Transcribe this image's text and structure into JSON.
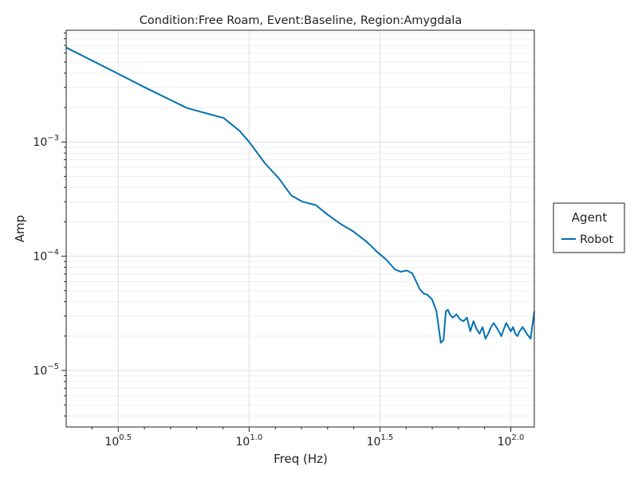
{
  "chart_data": {
    "type": "line",
    "title": "Condition:Free Roam, Event:Baseline, Region:Amygdala",
    "xlabel": "Freq (Hz)",
    "ylabel": "Amp",
    "xscale": "log10",
    "yscale": "log10",
    "xlim": [
      2,
      123
    ],
    "ylim": [
      3.2e-06,
      0.0095
    ],
    "grid": true,
    "x_ticks": [
      {
        "value": 3.1623,
        "base": "10",
        "exp": "0.5"
      },
      {
        "value": 10,
        "base": "10",
        "exp": "1.0"
      },
      {
        "value": 31.623,
        "base": "10",
        "exp": "1.5"
      },
      {
        "value": 100,
        "base": "10",
        "exp": "2.0"
      }
    ],
    "y_ticks": [
      {
        "value": 1e-05,
        "base": "10",
        "exp": "−5"
      },
      {
        "value": 0.0001,
        "base": "10",
        "exp": "−4"
      },
      {
        "value": 0.001,
        "base": "10",
        "exp": "−3"
      }
    ],
    "legend": {
      "title": "Agent",
      "position": "right"
    },
    "series": [
      {
        "name": "Robot",
        "color": "#0072b2",
        "x": [
          2.0,
          3.2,
          4.0,
          5.8,
          8.0,
          9.2,
          10.0,
          11.5,
          13.0,
          14.5,
          16.0,
          18.0,
          20.0,
          22.5,
          25.0,
          28.0,
          31.0,
          33.5,
          36.0,
          38.0,
          40.0,
          42.0,
          43.5,
          45.0,
          46.5,
          48.0,
          50.0,
          52.0,
          54.0,
          55.3,
          56.5,
          57.5,
          58.5,
          60.0,
          62.0,
          64.0,
          66.0,
          68.0,
          70.0,
          72.0,
          74.0,
          76.0,
          78.0,
          80.0,
          82.0,
          84.0,
          86.0,
          88.0,
          90.0,
          92.0,
          94.0,
          96.0,
          98.0,
          100.0,
          102.0,
          104.0,
          106.0,
          108.0,
          111.0,
          115.0,
          119.0,
          123.0
        ],
        "y": [
          0.0067,
          0.0039,
          0.003,
          0.00198,
          0.00162,
          0.00125,
          0.001,
          0.00065,
          0.00048,
          0.00034,
          0.0003,
          0.00028,
          0.00023,
          0.00019,
          0.000165,
          0.000135,
          0.000108,
          9.3e-05,
          7.7e-05,
          7.3e-05,
          7.5e-05,
          7.1e-05,
          6e-05,
          5.1e-05,
          4.7e-05,
          4.6e-05,
          4.2e-05,
          3.3e-05,
          1.75e-05,
          1.85e-05,
          3.3e-05,
          3.4e-05,
          3.1e-05,
          2.9e-05,
          3.1e-05,
          2.8e-05,
          2.7e-05,
          2.9e-05,
          2.2e-05,
          2.7e-05,
          2.3e-05,
          2.1e-05,
          2.4e-05,
          1.9e-05,
          2.1e-05,
          2.4e-05,
          2.6e-05,
          2.4e-05,
          2.2e-05,
          2e-05,
          2.3e-05,
          2.6e-05,
          2.4e-05,
          2.2e-05,
          2.4e-05,
          2.1e-05,
          2e-05,
          2.2e-05,
          2.4e-05,
          2.1e-05,
          1.9e-05,
          3.3e-05
        ]
      }
    ]
  }
}
